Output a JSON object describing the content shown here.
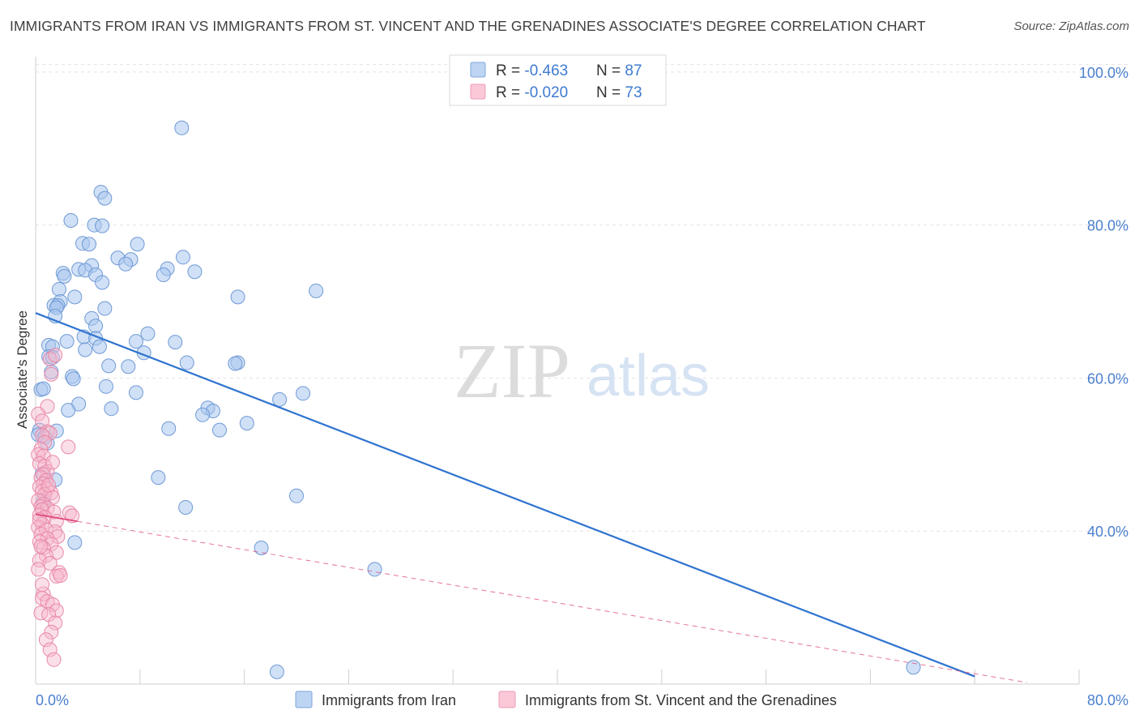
{
  "title": "IMMIGRANTS FROM IRAN VS IMMIGRANTS FROM ST. VINCENT AND THE GRENADINES ASSOCIATE'S DEGREE CORRELATION CHART",
  "source": "Source: ZipAtlas.com",
  "watermark": {
    "zip": "ZIP",
    "atlas": "atlas"
  },
  "legend_box": [
    {
      "r_label": "R = ",
      "r_value": "-0.463",
      "n_label": "N = ",
      "n_value": "87"
    },
    {
      "r_label": "R = ",
      "r_value": "-0.020",
      "n_label": "N = ",
      "n_value": "73"
    }
  ],
  "bottom_legend": [
    "Immigrants from Iran",
    "Immigrants from St. Vincent and the Grenadines"
  ],
  "chart_data": {
    "type": "scatter",
    "xlabel": "",
    "ylabel": "Associate's Degree",
    "xlim": [
      0,
      80
    ],
    "ylim": [
      20,
      102
    ],
    "x_tick_labels": [
      {
        "value": 0,
        "label": "0.0%"
      },
      {
        "value": 80,
        "label": "80.0%"
      }
    ],
    "y_tick_labels": [
      {
        "value": 100,
        "label": "100.0%"
      },
      {
        "value": 80,
        "label": "80.0%"
      },
      {
        "value": 60,
        "label": "60.0%"
      },
      {
        "value": 40,
        "label": "40.0%"
      }
    ],
    "colors": {
      "iran_fill": "#a9c7ef",
      "iran_stroke": "#6f9ad6",
      "iran_line": "#2f74cf",
      "svg_fill": "#f7b8cc",
      "svg_stroke": "#e889a9",
      "svg_line": "#e0517f",
      "axis_text": "#4a7fcf",
      "grid": "#e4e4e4"
    },
    "series": [
      {
        "name": "Immigrants from Iran",
        "r": -0.463,
        "n": 87,
        "trend": {
          "x0": 0,
          "y0": 68.5,
          "x1": 72,
          "y1": 21
        },
        "points": [
          [
            11.2,
            92.7
          ],
          [
            5.0,
            84.3
          ],
          [
            5.3,
            83.5
          ],
          [
            2.7,
            80.6
          ],
          [
            4.5,
            80.0
          ],
          [
            5.1,
            79.9
          ],
          [
            3.6,
            77.6
          ],
          [
            4.1,
            77.5
          ],
          [
            7.8,
            77.5
          ],
          [
            6.3,
            75.7
          ],
          [
            7.3,
            75.5
          ],
          [
            11.3,
            75.8
          ],
          [
            6.9,
            74.9
          ],
          [
            4.3,
            74.7
          ],
          [
            3.3,
            74.2
          ],
          [
            10.1,
            74.3
          ],
          [
            12.2,
            73.9
          ],
          [
            2.1,
            73.7
          ],
          [
            2.2,
            73.3
          ],
          [
            3.8,
            74.1
          ],
          [
            9.8,
            73.5
          ],
          [
            4.6,
            73.5
          ],
          [
            5.1,
            72.5
          ],
          [
            1.8,
            71.6
          ],
          [
            21.5,
            71.4
          ],
          [
            3.0,
            70.6
          ],
          [
            15.5,
            70.6
          ],
          [
            1.9,
            70.0
          ],
          [
            1.4,
            69.5
          ],
          [
            1.7,
            69.5
          ],
          [
            1.6,
            69.2
          ],
          [
            5.3,
            69.1
          ],
          [
            1.5,
            68.1
          ],
          [
            4.3,
            67.8
          ],
          [
            4.6,
            66.8
          ],
          [
            8.6,
            65.8
          ],
          [
            3.7,
            65.4
          ],
          [
            4.6,
            65.2
          ],
          [
            2.4,
            64.8
          ],
          [
            7.7,
            64.8
          ],
          [
            10.7,
            64.7
          ],
          [
            1.0,
            64.3
          ],
          [
            1.3,
            64.1
          ],
          [
            4.9,
            64.1
          ],
          [
            3.8,
            63.7
          ],
          [
            8.3,
            63.3
          ],
          [
            1.0,
            62.8
          ],
          [
            1.3,
            62.7
          ],
          [
            11.6,
            62.0
          ],
          [
            15.5,
            62.0
          ],
          [
            15.3,
            61.9
          ],
          [
            5.6,
            61.6
          ],
          [
            7.1,
            61.5
          ],
          [
            1.2,
            60.8
          ],
          [
            2.8,
            60.2
          ],
          [
            2.9,
            59.9
          ],
          [
            5.4,
            58.9
          ],
          [
            0.4,
            58.5
          ],
          [
            0.6,
            58.6
          ],
          [
            7.7,
            58.1
          ],
          [
            20.5,
            58.0
          ],
          [
            18.7,
            57.2
          ],
          [
            3.3,
            56.6
          ],
          [
            13.2,
            56.1
          ],
          [
            5.8,
            56.0
          ],
          [
            2.5,
            55.8
          ],
          [
            13.6,
            55.7
          ],
          [
            12.8,
            55.2
          ],
          [
            16.2,
            54.1
          ],
          [
            0.3,
            53.2
          ],
          [
            1.6,
            53.1
          ],
          [
            10.2,
            53.4
          ],
          [
            14.1,
            53.2
          ],
          [
            0.2,
            52.6
          ],
          [
            0.7,
            52.3
          ],
          [
            9.4,
            47.0
          ],
          [
            1.5,
            46.7
          ],
          [
            20.0,
            44.6
          ],
          [
            11.5,
            43.1
          ],
          [
            3.0,
            38.5
          ],
          [
            17.3,
            37.8
          ],
          [
            26.0,
            35.0
          ],
          [
            18.5,
            21.6
          ],
          [
            67.3,
            22.2
          ],
          [
            0.6,
            44.0
          ],
          [
            0.5,
            47.5
          ],
          [
            0.9,
            51.5
          ]
        ]
      },
      {
        "name": "Immigrants from St. Vincent and the Grenadines",
        "r": -0.02,
        "n": 73,
        "trend": {
          "x0": 0,
          "y0": 42.2,
          "x1": 76,
          "y1": 20.2
        },
        "points": [
          [
            1.1,
            62.5
          ],
          [
            1.5,
            63.0
          ],
          [
            1.2,
            60.5
          ],
          [
            0.9,
            56.3
          ],
          [
            0.2,
            55.3
          ],
          [
            0.5,
            54.4
          ],
          [
            0.9,
            53.0
          ],
          [
            1.1,
            52.8
          ],
          [
            0.5,
            52.5
          ],
          [
            0.7,
            51.6
          ],
          [
            2.5,
            51.0
          ],
          [
            0.4,
            50.7
          ],
          [
            0.2,
            50.0
          ],
          [
            0.6,
            49.8
          ],
          [
            0.3,
            48.8
          ],
          [
            0.7,
            48.5
          ],
          [
            0.9,
            47.8
          ],
          [
            0.6,
            47.4
          ],
          [
            0.4,
            47.0
          ],
          [
            0.8,
            46.6
          ],
          [
            0.6,
            46.2
          ],
          [
            0.3,
            45.8
          ],
          [
            0.9,
            45.5
          ],
          [
            0.5,
            45.2
          ],
          [
            1.2,
            45.0
          ],
          [
            0.7,
            44.8
          ],
          [
            1.3,
            44.4
          ],
          [
            0.2,
            44.0
          ],
          [
            0.6,
            43.5
          ],
          [
            0.4,
            43.2
          ],
          [
            0.9,
            43.0
          ],
          [
            0.5,
            42.8
          ],
          [
            1.4,
            42.5
          ],
          [
            2.6,
            42.4
          ],
          [
            0.3,
            42.1
          ],
          [
            2.8,
            42.0
          ],
          [
            0.7,
            41.8
          ],
          [
            1.6,
            41.3
          ],
          [
            0.5,
            40.9
          ],
          [
            0.2,
            40.5
          ],
          [
            0.8,
            40.2
          ],
          [
            1.5,
            39.9
          ],
          [
            0.4,
            39.6
          ],
          [
            1.7,
            39.3
          ],
          [
            0.9,
            39.0
          ],
          [
            0.3,
            38.6
          ],
          [
            1.2,
            38.3
          ],
          [
            0.6,
            37.8
          ],
          [
            1.6,
            37.2
          ],
          [
            0.8,
            36.8
          ],
          [
            0.3,
            36.2
          ],
          [
            1.1,
            35.8
          ],
          [
            0.2,
            35.0
          ],
          [
            1.8,
            34.6
          ],
          [
            1.6,
            34.1
          ],
          [
            1.9,
            34.2
          ],
          [
            0.6,
            31.8
          ],
          [
            0.5,
            31.2
          ],
          [
            0.9,
            30.8
          ],
          [
            1.3,
            30.4
          ],
          [
            1.6,
            29.6
          ],
          [
            0.4,
            29.3
          ],
          [
            1.0,
            29.1
          ],
          [
            1.5,
            28.0
          ],
          [
            1.2,
            26.8
          ],
          [
            0.8,
            25.8
          ],
          [
            1.1,
            24.5
          ],
          [
            1.4,
            23.2
          ],
          [
            0.5,
            33.0
          ],
          [
            0.3,
            41.5
          ],
          [
            1.0,
            46.0
          ],
          [
            0.4,
            38.0
          ],
          [
            1.3,
            49.0
          ]
        ]
      }
    ]
  }
}
